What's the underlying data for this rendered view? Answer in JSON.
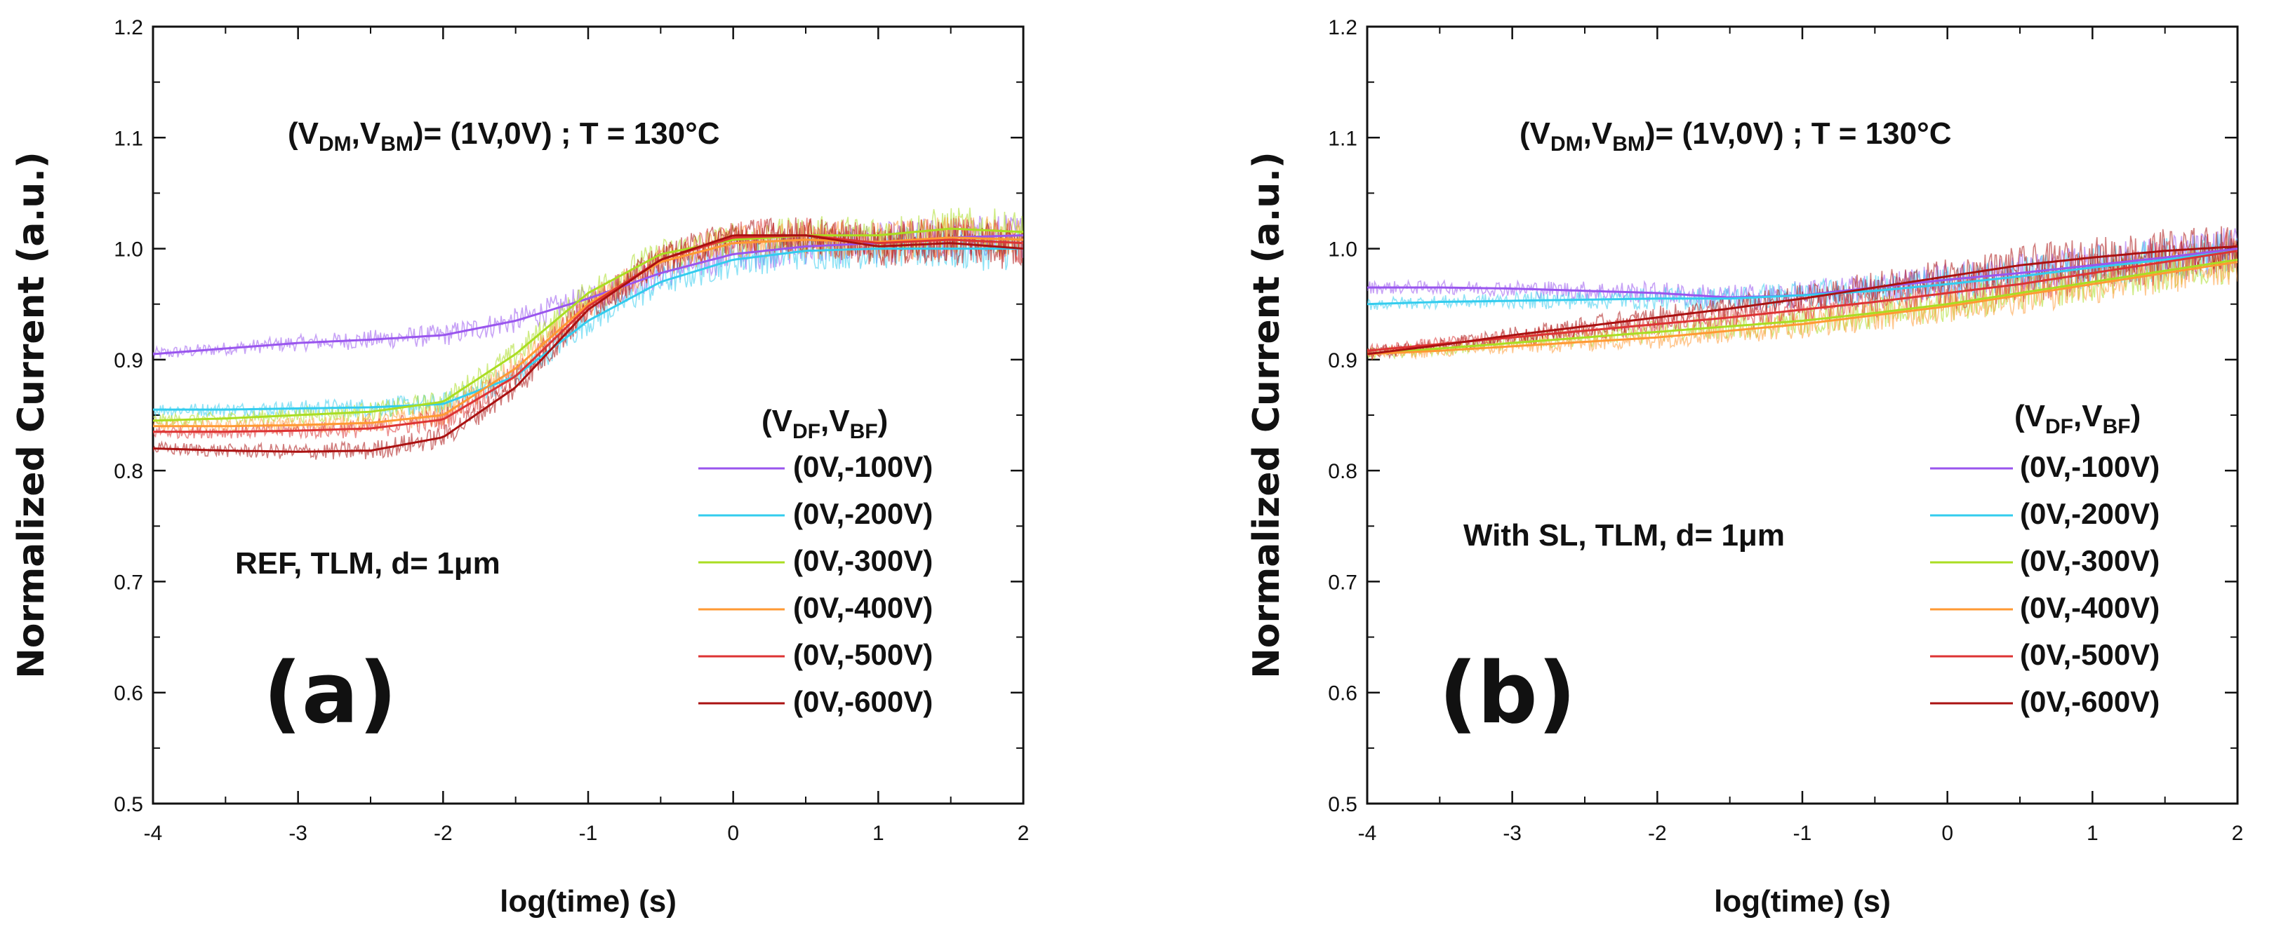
{
  "chart_data": [
    {
      "type": "line",
      "panel": "(a)",
      "xlabel": "log(time) (s)",
      "ylabel": "Normalized Current (a.u.)",
      "xlim": [
        -4,
        2
      ],
      "ylim": [
        0.5,
        1.2
      ],
      "xticks": [
        -4,
        -3,
        -2,
        -1,
        0,
        1,
        2
      ],
      "yticks": [
        0.5,
        0.6,
        0.7,
        0.8,
        0.9,
        1.0,
        1.1,
        1.2
      ],
      "xtick_labels": [
        "-4",
        "-3",
        "-2",
        "-1",
        "0",
        "1",
        "2"
      ],
      "ytick_labels": [
        "0.5",
        "0.6",
        "0.7",
        "0.8",
        "0.9",
        "1.0",
        "1.1",
        "1.2"
      ],
      "title_prefix": "(V",
      "title_sub1": "DM",
      "title_mid": ",V",
      "title_sub2": "BM",
      "title_suffix": ")= (1V,0V) ; T = 130°C",
      "annotation": "REF, TLM, d= 1μm",
      "legend_title_prefix": "(V",
      "legend_title_sub1": "DF",
      "legend_title_mid": ",V",
      "legend_title_sub2": "BF",
      "legend_title_suffix": ")",
      "series": [
        {
          "name": "(0V,-100V)",
          "color": "#9955ee",
          "x": [
            -4,
            -3.5,
            -3,
            -2.5,
            -2,
            -1.5,
            -1,
            -0.5,
            0,
            0.5,
            1,
            1.5,
            2
          ],
          "values": [
            0.905,
            0.91,
            0.915,
            0.918,
            0.922,
            0.935,
            0.955,
            0.978,
            0.995,
            1.002,
            1.005,
            1.01,
            1.012
          ]
        },
        {
          "name": "(0V,-200V)",
          "color": "#33ccee",
          "x": [
            -4,
            -3.5,
            -3,
            -2.5,
            -2,
            -1.5,
            -1,
            -0.5,
            0,
            0.5,
            1,
            1.5,
            2
          ],
          "values": [
            0.855,
            0.855,
            0.856,
            0.857,
            0.86,
            0.885,
            0.935,
            0.97,
            0.99,
            0.998,
            1.0,
            1.0,
            1.0
          ]
        },
        {
          "name": "(0V,-300V)",
          "color": "#aadd22",
          "x": [
            -4,
            -3.5,
            -3,
            -2.5,
            -2,
            -1.5,
            -1,
            -0.5,
            0,
            0.5,
            1,
            1.5,
            2
          ],
          "values": [
            0.845,
            0.847,
            0.85,
            0.853,
            0.862,
            0.905,
            0.96,
            0.995,
            1.008,
            1.012,
            1.012,
            1.018,
            1.015
          ]
        },
        {
          "name": "(0V,-400V)",
          "color": "#ff9933",
          "x": [
            -4,
            -3.5,
            -3,
            -2.5,
            -2,
            -1.5,
            -1,
            -0.5,
            0,
            0.5,
            1,
            1.5,
            2
          ],
          "values": [
            0.84,
            0.84,
            0.841,
            0.843,
            0.85,
            0.892,
            0.95,
            0.988,
            1.005,
            1.008,
            1.006,
            1.01,
            1.008
          ]
        },
        {
          "name": "(0V,-500V)",
          "color": "#dd3333",
          "x": [
            -4,
            -3.5,
            -3,
            -2.5,
            -2,
            -1.5,
            -1,
            -0.5,
            0,
            0.5,
            1,
            1.5,
            2
          ],
          "values": [
            0.835,
            0.835,
            0.836,
            0.838,
            0.846,
            0.885,
            0.948,
            0.99,
            1.01,
            1.012,
            1.005,
            1.008,
            1.005
          ]
        },
        {
          "name": "(0V,-600V)",
          "color": "#aa1111",
          "x": [
            -4,
            -3.5,
            -3,
            -2.5,
            -2,
            -1.5,
            -1,
            -0.5,
            0,
            0.5,
            1,
            1.5,
            2
          ],
          "values": [
            0.82,
            0.818,
            0.817,
            0.818,
            0.83,
            0.875,
            0.945,
            0.99,
            1.012,
            1.012,
            1.002,
            1.005,
            1.0
          ]
        }
      ]
    },
    {
      "type": "line",
      "panel": "(b)",
      "xlabel": "log(time) (s)",
      "ylabel": "Normalized Current (a.u.)",
      "xlim": [
        -4,
        2
      ],
      "ylim": [
        0.5,
        1.2
      ],
      "xticks": [
        -4,
        -3,
        -2,
        -1,
        0,
        1,
        2
      ],
      "yticks": [
        0.5,
        0.6,
        0.7,
        0.8,
        0.9,
        1.0,
        1.1,
        1.2
      ],
      "xtick_labels": [
        "-4",
        "-3",
        "-2",
        "-1",
        "0",
        "1",
        "2"
      ],
      "ytick_labels": [
        "0.5",
        "0.6",
        "0.7",
        "0.8",
        "0.9",
        "1.0",
        "1.1",
        "1.2"
      ],
      "title_prefix": "(V",
      "title_sub1": "DM",
      "title_mid": ",V",
      "title_sub2": "BM",
      "title_suffix": ")= (1V,0V) ; T = 130°C",
      "annotation": "With SL, TLM, d= 1μm",
      "legend_title_prefix": "(V",
      "legend_title_sub1": "DF",
      "legend_title_mid": ",V",
      "legend_title_sub2": "BF",
      "legend_title_suffix": ")",
      "series": [
        {
          "name": "(0V,-100V)",
          "color": "#9955ee",
          "x": [
            -4,
            -3.5,
            -3,
            -2.5,
            -2,
            -1.5,
            -1,
            -0.5,
            0,
            0.5,
            1,
            1.5,
            2
          ],
          "values": [
            0.965,
            0.965,
            0.964,
            0.962,
            0.96,
            0.956,
            0.958,
            0.965,
            0.972,
            0.978,
            0.985,
            0.992,
            1.0
          ]
        },
        {
          "name": "(0V,-200V)",
          "color": "#33ccee",
          "x": [
            -4,
            -3.5,
            -3,
            -2.5,
            -2,
            -1.5,
            -1,
            -0.5,
            0,
            0.5,
            1,
            1.5,
            2
          ],
          "values": [
            0.95,
            0.952,
            0.953,
            0.954,
            0.955,
            0.955,
            0.958,
            0.962,
            0.968,
            0.975,
            0.983,
            0.99,
            0.998
          ]
        },
        {
          "name": "(0V,-300V)",
          "color": "#aadd22",
          "x": [
            -4,
            -3.5,
            -3,
            -2.5,
            -2,
            -1.5,
            -1,
            -0.5,
            0,
            0.5,
            1,
            1.5,
            2
          ],
          "values": [
            0.905,
            0.91,
            0.915,
            0.92,
            0.925,
            0.93,
            0.935,
            0.942,
            0.95,
            0.96,
            0.97,
            0.98,
            0.99
          ]
        },
        {
          "name": "(0V,-400V)",
          "color": "#ff9933",
          "x": [
            -4,
            -3.5,
            -3,
            -2.5,
            -2,
            -1.5,
            -1,
            -0.5,
            0,
            0.5,
            1,
            1.5,
            2
          ],
          "values": [
            0.905,
            0.908,
            0.912,
            0.916,
            0.92,
            0.926,
            0.932,
            0.94,
            0.948,
            0.958,
            0.968,
            0.978,
            0.988
          ]
        },
        {
          "name": "(0V,-500V)",
          "color": "#dd3333",
          "x": [
            -4,
            -3.5,
            -3,
            -2.5,
            -2,
            -1.5,
            -1,
            -0.5,
            0,
            0.5,
            1,
            1.5,
            2
          ],
          "values": [
            0.908,
            0.914,
            0.92,
            0.926,
            0.932,
            0.938,
            0.945,
            0.952,
            0.96,
            0.968,
            0.978,
            0.988,
            0.998
          ]
        },
        {
          "name": "(0V,-600V)",
          "color": "#aa1111",
          "x": [
            -4,
            -3.5,
            -3,
            -2.5,
            -2,
            -1.5,
            -1,
            -0.5,
            0,
            0.5,
            1,
            1.5,
            2
          ],
          "values": [
            0.905,
            0.913,
            0.922,
            0.93,
            0.938,
            0.946,
            0.955,
            0.965,
            0.975,
            0.985,
            0.992,
            0.998,
            1.002
          ]
        }
      ]
    }
  ]
}
